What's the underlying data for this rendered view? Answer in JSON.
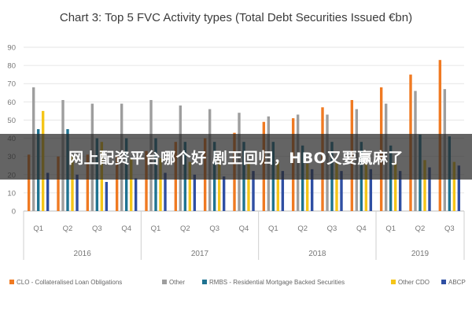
{
  "chart_data": {
    "type": "bar",
    "title": "Chart 3: Top 5 FVC Activity types (Total Debt Securities Issued €bn)",
    "quarters": [
      "Q1",
      "Q2",
      "Q3",
      "Q4",
      "Q1",
      "Q2",
      "Q3",
      "Q4",
      "Q1",
      "Q2",
      "Q3",
      "Q4",
      "Q1",
      "Q2",
      "Q3"
    ],
    "years": [
      {
        "label": "2016",
        "quarters": 4
      },
      {
        "label": "2017",
        "quarters": 4
      },
      {
        "label": "2018",
        "quarters": 4
      },
      {
        "label": "2019",
        "quarters": 3
      }
    ],
    "ylim": [
      0,
      90
    ],
    "yticks": [
      0,
      10,
      20,
      30,
      40,
      50,
      60,
      70,
      80,
      90
    ],
    "grid": true,
    "legend_position": "bottom",
    "series": [
      {
        "name": "CLO - Collateralised Loan Obligations",
        "color": "#f07a22",
        "values": [
          31,
          30,
          31,
          30,
          33,
          38,
          40,
          43,
          49,
          51,
          57,
          61,
          68,
          75,
          83
        ]
      },
      {
        "name": "Other",
        "color": "#9e9e9e",
        "values": [
          68,
          61,
          59,
          59,
          61,
          58,
          56,
          54,
          52,
          53,
          53,
          56,
          59,
          66,
          67
        ]
      },
      {
        "name": "RMBS - Residential Mortgage Backed Securities",
        "color": "#1f7391",
        "values": [
          45,
          45,
          40,
          40,
          40,
          38,
          38,
          38,
          38,
          36,
          38,
          38,
          36,
          42,
          41
        ]
      },
      {
        "name": "Other CDO",
        "color": "#f5c518",
        "values": [
          55,
          30,
          38,
          29,
          29,
          27,
          27,
          26,
          27,
          26,
          27,
          27,
          27,
          28,
          27
        ]
      },
      {
        "name": "ABCP",
        "color": "#2f4fa3",
        "values": [
          21,
          20,
          16,
          18,
          21,
          20,
          19,
          22,
          22,
          23,
          22,
          23,
          22,
          24,
          25
        ]
      }
    ]
  },
  "overlay": {
    "banner_text": "网上配资平台哪个好 剧王回归，HBO又要赢麻了"
  }
}
